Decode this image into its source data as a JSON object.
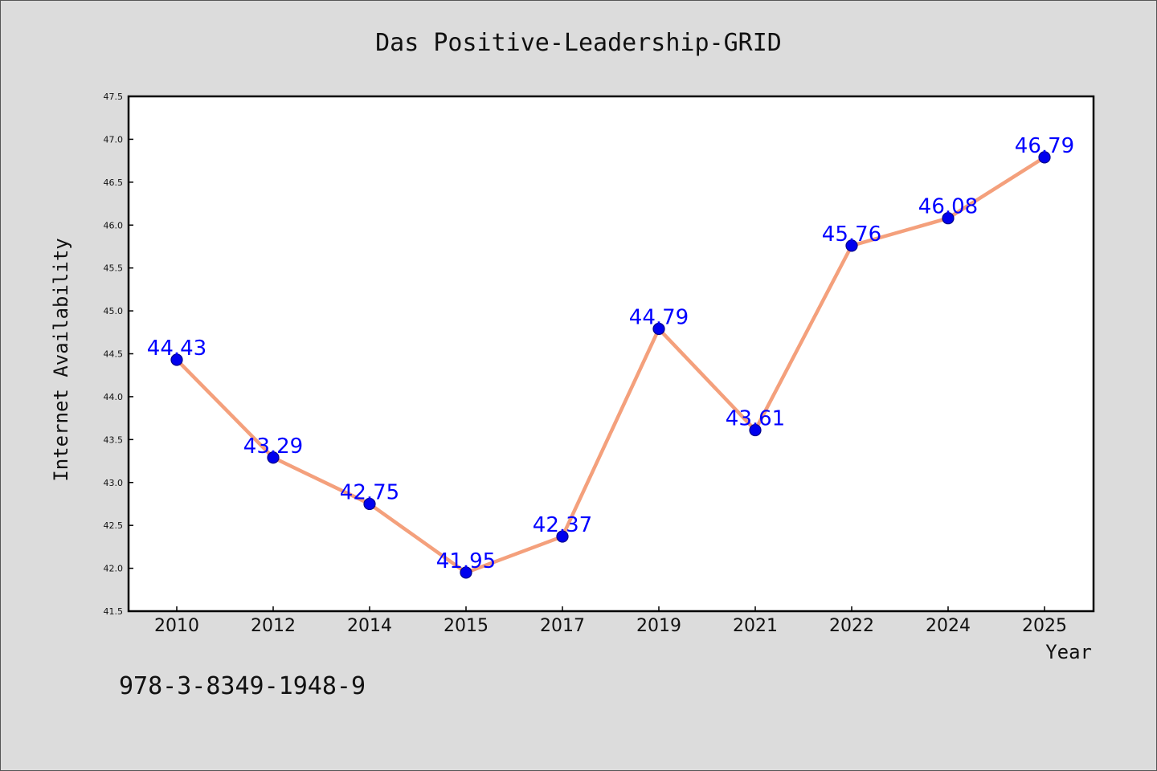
{
  "chart_data": {
    "type": "line",
    "title": "Das Positive-Leadership-GRID",
    "xlabel": "Year",
    "ylabel": "Internet Availability",
    "categories": [
      "2010",
      "2012",
      "2014",
      "2015",
      "2017",
      "2019",
      "2021",
      "2022",
      "2024",
      "2025"
    ],
    "values": [
      44.43,
      43.29,
      42.75,
      41.95,
      42.37,
      44.79,
      43.61,
      45.76,
      46.08,
      46.79
    ],
    "data_labels": [
      "44.43",
      "43.29",
      "42.75",
      "41.95",
      "42.37",
      "44.79",
      "43.61",
      "45.76",
      "46.08",
      "46.79"
    ],
    "ylim": [
      41.5,
      47.5
    ],
    "yticks": [
      "41.5",
      "42.0",
      "42.5",
      "43.0",
      "43.5",
      "44.0",
      "44.5",
      "45.0",
      "45.5",
      "46.0",
      "46.5",
      "47.0",
      "47.5"
    ],
    "grid": false,
    "legend": "none",
    "colors": {
      "line": "#f4a07c",
      "marker": "#0000ee",
      "marker_edge": "#00008b",
      "label": "#0000ff",
      "plot_bg": "#ffffff",
      "figure_bg": "#dcdcdc"
    }
  },
  "footer": {
    "isbn": "978-3-8349-1948-9"
  }
}
